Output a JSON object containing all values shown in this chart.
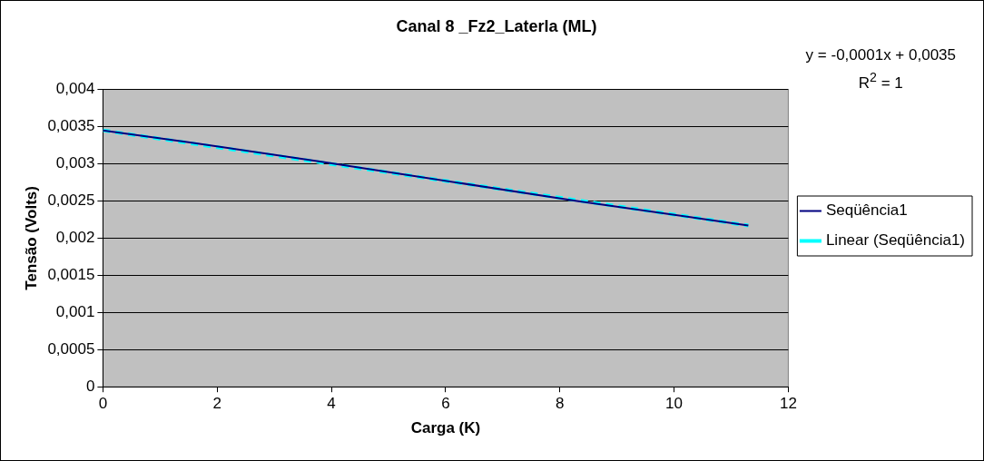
{
  "chart_data": {
    "type": "line",
    "title": "Canal 8 _Fz2_Laterla (ML)",
    "xlabel": "Carga (K)",
    "ylabel": "Tensão (Volts)",
    "annotations": [
      "y = -0,0001x + 0,0035",
      "R$^{2}$ = 1"
    ],
    "series": [
      {
        "name": "Seqüência1",
        "color": "#000080",
        "line_style": "solid",
        "x": [
          0,
          1.5,
          3.8,
          8.3,
          11.3
        ],
        "values": [
          0.00345,
          0.00329,
          0.00303,
          0.0025,
          0.00217
        ]
      },
      {
        "name": "Linear (Seqüência1)",
        "color": "#00ffff",
        "line_style": "dashed",
        "x": [
          0,
          11.3
        ],
        "values": [
          0.00345,
          0.00217
        ]
      }
    ],
    "xlim": [
      0,
      12
    ],
    "xticks": [
      0,
      2,
      4,
      6,
      8,
      10,
      12
    ],
    "ylim": [
      0,
      0.004
    ],
    "yticks": [
      0,
      {
        "value": 0.0005,
        "label": "0,0005"
      },
      {
        "value": 0.001,
        "label": "0,001"
      },
      {
        "value": 0.0015,
        "label": "0,0015"
      },
      {
        "value": 0.002,
        "label": "0,002"
      },
      {
        "value": 0.0025,
        "label": "0,0025"
      },
      {
        "value": 0.003,
        "label": "0,003"
      },
      {
        "value": 0.0035,
        "label": "0,0035"
      },
      {
        "value": 0.004,
        "label": "0,004"
      }
    ],
    "grid": "y",
    "legend": "right",
    "marker": "none"
  }
}
